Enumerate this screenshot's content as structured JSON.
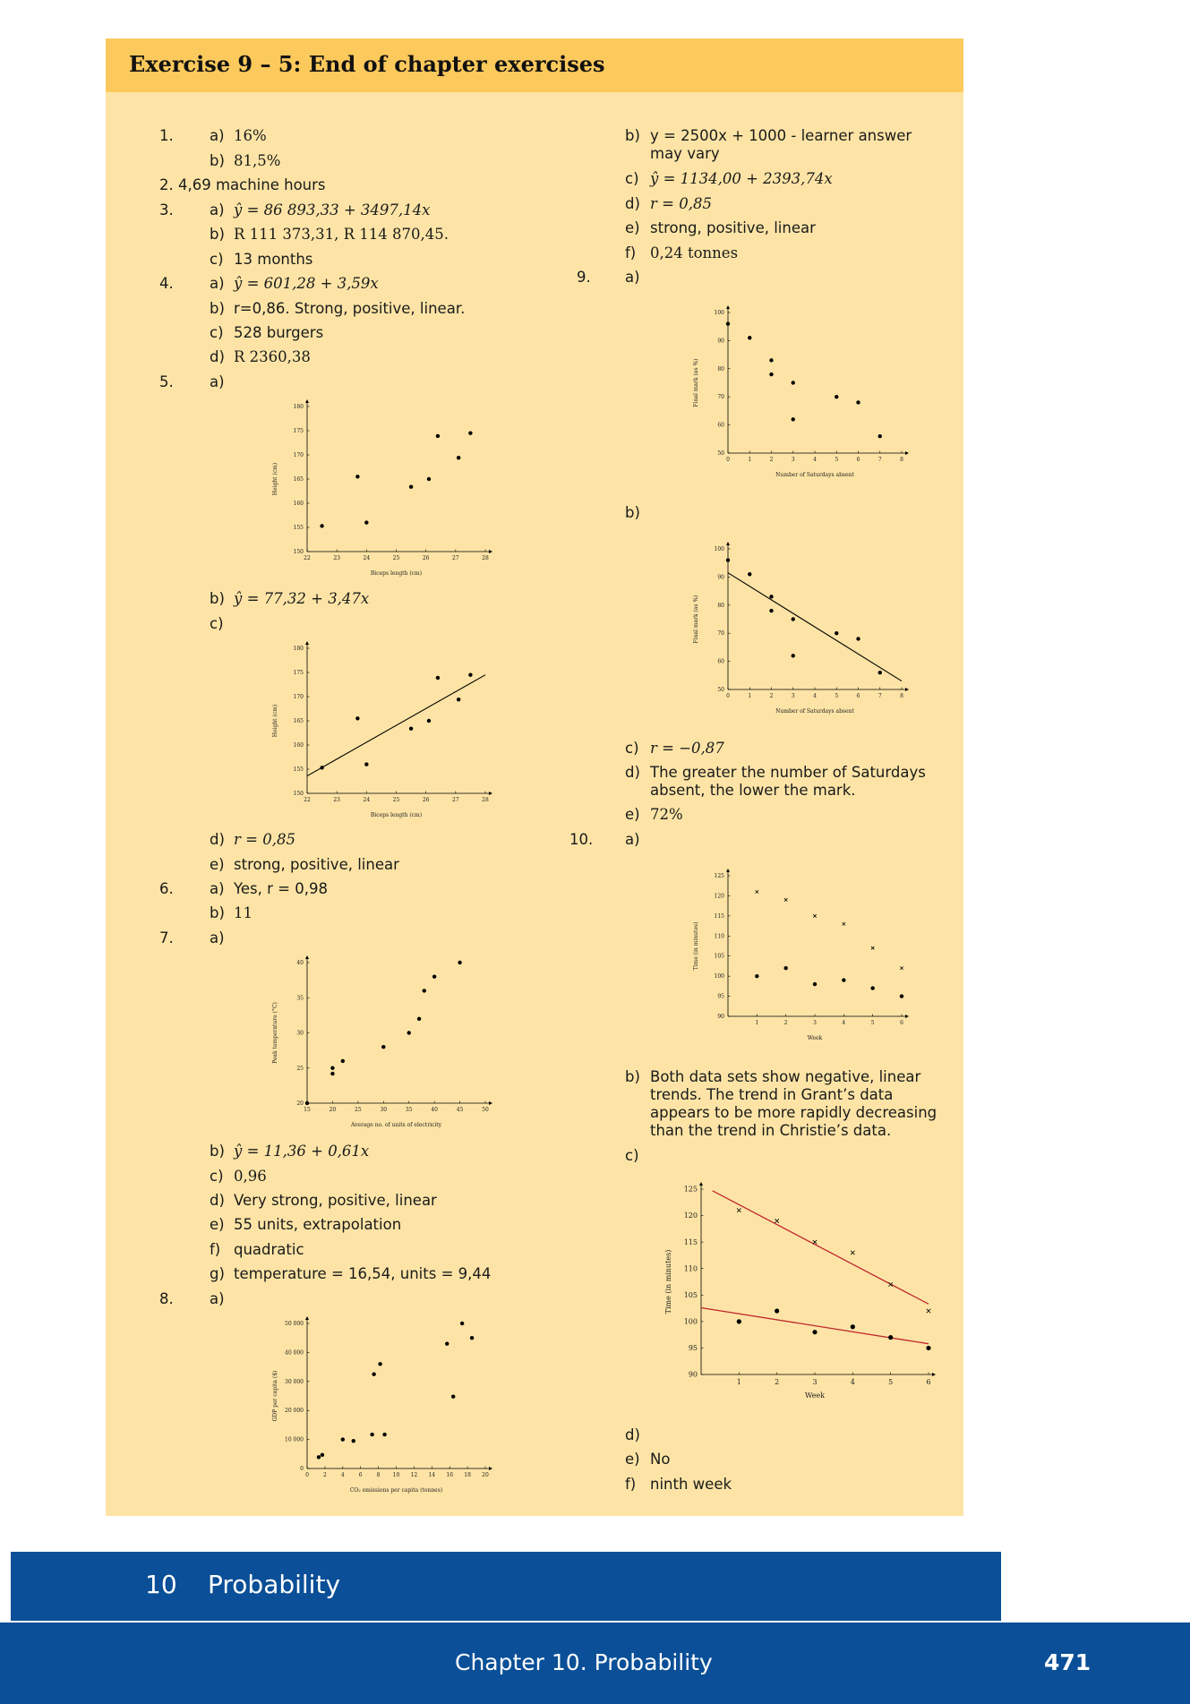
{
  "header": {
    "title": "Exercise 9 – 5: End of chapter exercises"
  },
  "left": {
    "q1": {
      "num": "1.",
      "a_label": "a)",
      "a": "16%",
      "b_label": "b)",
      "b": "81,5%"
    },
    "q2": {
      "text": "2. 4,69 machine hours"
    },
    "q3": {
      "num": "3.",
      "a_label": "a)",
      "a": "ŷ = 86 893,33 + 3497,14x",
      "b_label": "b)",
      "b": "R 111 373,31, R 114 870,45.",
      "c_label": "c)",
      "c": "13 months"
    },
    "q4": {
      "num": "4.",
      "a_label": "a)",
      "a": "ŷ = 601,28 + 3,59x",
      "b_label": "b)",
      "b": "r=0,86. Strong, positive, linear.",
      "c_label": "c)",
      "c": "528 burgers",
      "d_label": "d)",
      "d": "R 2360,38"
    },
    "q5": {
      "num": "5.",
      "a_label": "a)",
      "b_label": "b)",
      "b": "ŷ = 77,32 + 3,47x",
      "c_label": "c)",
      "d_label": "d)",
      "d": "r = 0,85",
      "e_label": "e)",
      "e": "strong, positive, linear"
    },
    "q6": {
      "num": "6.",
      "a_label": "a)",
      "a": "Yes, r = 0,98",
      "b_label": "b)",
      "b": "11"
    },
    "q7": {
      "num": "7.",
      "a_label": "a)",
      "b_label": "b)",
      "b": "ŷ = 11,36 + 0,61x",
      "c_label": "c)",
      "c": "0,96",
      "d_label": "d)",
      "d": "Very strong, positive, linear",
      "e_label": "e)",
      "e": "55 units, extrapolation",
      "f_label": "f)",
      "f": "quadratic",
      "g_label": "g)",
      "g": "temperature = 16,54, units = 9,44"
    },
    "q8": {
      "num": "8.",
      "a_label": "a)"
    }
  },
  "right": {
    "q8": {
      "b_label": "b)",
      "b": "y = 2500x + 1000 - learner answer may vary",
      "c_label": "c)",
      "c": "ŷ = 1134,00 + 2393,74x",
      "d_label": "d)",
      "d": "r = 0,85",
      "e_label": "e)",
      "e": "strong, positive, linear",
      "f_label": "f)",
      "f": "0,24 tonnes"
    },
    "q9": {
      "num": "9.",
      "a_label": "a)",
      "b_label": "b)",
      "c_label": "c)",
      "c": "r = −0,87",
      "d_label": "d)",
      "d": "The greater the number of Saturdays absent, the lower the mark.",
      "e_label": "e)",
      "e": "72%"
    },
    "q10": {
      "num": "10.",
      "a_label": "a)",
      "b_label": "b)",
      "b": "Both data sets show negative, linear trends. The trend in Grant’s data appears to be more rapidly decreasing than the trend in Christie’s data.",
      "c_label": "c)",
      "d_label": "d)",
      "e_label": "e)",
      "e": "No",
      "f_label": "f)",
      "f": "ninth week"
    }
  },
  "section": {
    "number": "10",
    "title": "Probability"
  },
  "footer": {
    "chapter": "Chapter 10.   Probability",
    "page": "471"
  },
  "chart_data": [
    {
      "id": "q5a",
      "type": "scatter",
      "xlabel": "Biceps length (cm)",
      "ylabel": "Height (cm)",
      "xlim": [
        22,
        28
      ],
      "ylim": [
        150,
        180
      ],
      "xticks": [
        22,
        23,
        24,
        25,
        26,
        27,
        28
      ],
      "yticks": [
        150,
        155,
        160,
        165,
        170,
        175,
        180
      ],
      "x": [
        22.5,
        23.7,
        24,
        25.5,
        26.1,
        26.4,
        27.1,
        27.5
      ],
      "y": [
        155.3,
        165.5,
        156,
        163.4,
        165,
        173.9,
        169.4,
        174.5
      ]
    },
    {
      "id": "q5c",
      "type": "scatter",
      "xlabel": "Biceps length (cm)",
      "ylabel": "Height (cm)",
      "xlim": [
        22,
        28
      ],
      "ylim": [
        150,
        180
      ],
      "xticks": [
        22,
        23,
        24,
        25,
        26,
        27,
        28
      ],
      "yticks": [
        150,
        155,
        160,
        165,
        170,
        175,
        180
      ],
      "x": [
        22.5,
        23.7,
        24,
        25.5,
        26.1,
        26.4,
        27.1,
        27.5
      ],
      "y": [
        155.3,
        165.5,
        156,
        163.4,
        165,
        173.9,
        169.4,
        174.5
      ],
      "lines": [
        {
          "x": [
            22,
            28
          ],
          "y": [
            153.6,
            174.5
          ],
          "color": "#000000"
        }
      ]
    },
    {
      "id": "q7a",
      "type": "scatter",
      "xlabel": "Average no. of units of electricity",
      "ylabel": "Peak temperature (°C)",
      "xlim": [
        15,
        50
      ],
      "ylim": [
        20,
        40
      ],
      "xticks": [
        15,
        20,
        25,
        30,
        35,
        40,
        45,
        50
      ],
      "yticks": [
        20,
        25,
        30,
        35,
        40
      ],
      "x": [
        15,
        20,
        20,
        22,
        30,
        35,
        37,
        38,
        40,
        45
      ],
      "y": [
        20,
        25,
        24.2,
        26,
        28,
        30,
        32,
        36,
        38,
        40
      ]
    },
    {
      "id": "q8a",
      "type": "scatter",
      "xlabel": "CO₂ emissions per capita (tonnes)",
      "ylabel": "GDP per capita ($)",
      "xlim": [
        0,
        20
      ],
      "ylim": [
        0,
        50000
      ],
      "xticks": [
        0,
        2,
        4,
        6,
        8,
        10,
        12,
        14,
        16,
        18,
        20
      ],
      "yticks": [
        0,
        10000,
        20000,
        30000,
        40000,
        50000
      ],
      "ytick_labels": [
        "0",
        "10 000",
        "20 000",
        "30 000",
        "40 000",
        "50 000"
      ],
      "x": [
        1.3,
        1.7,
        4,
        5.2,
        7.3,
        7.5,
        8.2,
        8.7,
        15.7,
        16.4,
        17.4,
        18.5
      ],
      "y": [
        3900,
        4700,
        10000,
        9500,
        11700,
        32500,
        36000,
        11700,
        43000,
        24800,
        50000,
        45000
      ]
    },
    {
      "id": "q9a",
      "type": "scatter",
      "xlabel": "Number of Saturdays absent",
      "ylabel": "Final mark (as %)",
      "xlim": [
        0,
        8
      ],
      "ylim": [
        50,
        100
      ],
      "xticks": [
        0,
        1,
        2,
        3,
        4,
        5,
        6,
        7,
        8
      ],
      "yticks": [
        50,
        60,
        70,
        80,
        90,
        100
      ],
      "x": [
        0,
        1,
        2,
        2,
        3,
        3,
        5,
        6,
        7
      ],
      "y": [
        96,
        91,
        83,
        78,
        75,
        62,
        70,
        68,
        56
      ]
    },
    {
      "id": "q9b",
      "type": "scatter",
      "xlabel": "Number of Saturdays absent",
      "ylabel": "Final mark (as %)",
      "xlim": [
        0,
        8
      ],
      "ylim": [
        50,
        100
      ],
      "xticks": [
        0,
        1,
        2,
        3,
        4,
        5,
        6,
        7,
        8
      ],
      "yticks": [
        50,
        60,
        70,
        80,
        90,
        100
      ],
      "x": [
        0,
        1,
        2,
        2,
        3,
        3,
        5,
        6,
        7
      ],
      "y": [
        96,
        91,
        83,
        78,
        75,
        62,
        70,
        68,
        56
      ],
      "lines": [
        {
          "x": [
            0,
            8
          ],
          "y": [
            91.5,
            53
          ],
          "color": "#000000"
        }
      ]
    },
    {
      "id": "q10a",
      "type": "scatter",
      "xlabel": "Week",
      "ylabel": "Time (in minutes)",
      "xlim": [
        0,
        6
      ],
      "ylim": [
        90,
        125
      ],
      "xticks": [
        1,
        2,
        3,
        4,
        5,
        6
      ],
      "yticks": [
        90,
        95,
        100,
        105,
        110,
        115,
        120,
        125
      ],
      "series": [
        {
          "marker": "x",
          "x": [
            1,
            2,
            3,
            4,
            5,
            6
          ],
          "y": [
            121,
            119,
            115,
            113,
            107,
            102
          ]
        },
        {
          "marker": "dot",
          "x": [
            1,
            2,
            3,
            4,
            5,
            6
          ],
          "y": [
            100,
            102,
            98,
            99,
            97,
            95
          ]
        }
      ]
    },
    {
      "id": "q10c",
      "type": "scatter",
      "xlabel": "Week",
      "ylabel": "Time (in minutes)",
      "xlim": [
        0,
        6
      ],
      "ylim": [
        90,
        125
      ],
      "xticks": [
        1,
        2,
        3,
        4,
        5,
        6
      ],
      "yticks": [
        90,
        95,
        100,
        105,
        110,
        115,
        120,
        125
      ],
      "series": [
        {
          "marker": "x",
          "x": [
            1,
            2,
            3,
            4,
            5,
            6
          ],
          "y": [
            121,
            119,
            115,
            113,
            107,
            102
          ]
        },
        {
          "marker": "dot",
          "x": [
            1,
            2,
            3,
            4,
            5,
            6
          ],
          "y": [
            100,
            102,
            98,
            99,
            97,
            95
          ]
        }
      ],
      "lines": [
        {
          "x": [
            0.3,
            6
          ],
          "y": [
            124.7,
            103.3
          ],
          "color": "#c0272d"
        },
        {
          "x": [
            0,
            6
          ],
          "y": [
            102.6,
            95.8
          ],
          "color": "#c0272d"
        }
      ]
    }
  ]
}
